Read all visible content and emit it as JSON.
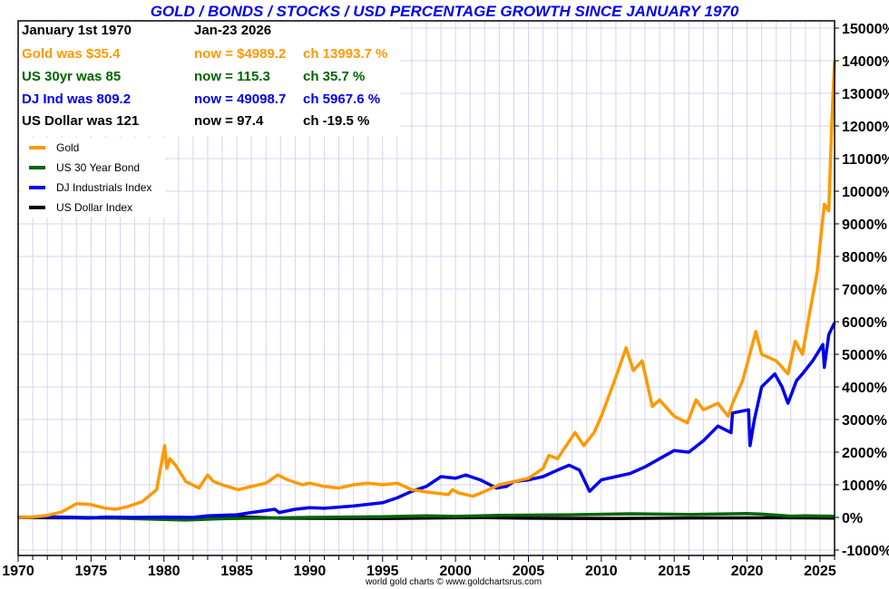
{
  "title": "GOLD / BONDS / STOCKS / USD PERCENTAGE GROWTH SINCE JANUARY 1970",
  "info": {
    "header": {
      "start": "January 1st 1970",
      "end": "Jan-23  2026"
    },
    "rows": [
      {
        "was": "Gold was $35.4",
        "now": "now = $4989.2",
        "ch": "ch 13993.7 %",
        "color": "#ff9900"
      },
      {
        "was": "US 30yr was 85",
        "now": "now = 115.3",
        "ch": "ch 35.7 %",
        "color": "#006600"
      },
      {
        "was": "DJ Ind was 809.2",
        "now": "now = 49098.7",
        "ch": "ch 5967.6 %",
        "color": "#0000ee"
      },
      {
        "was": "US Dollar was 121",
        "now": "now = 97.4",
        "ch": "ch -19.5 %",
        "color": "#000000"
      }
    ]
  },
  "footer": "world gold charts © www.goldchartsrus.com",
  "chart_data": {
    "type": "line",
    "title": "GOLD / BONDS / STOCKS / USD PERCENTAGE GROWTH SINCE JANUARY 1970",
    "xlabel": "",
    "ylabel": "",
    "xlim": [
      1970,
      2026
    ],
    "ylim": [
      -1000,
      15000
    ],
    "grid": true,
    "legend_position": "top-left",
    "x_ticks": [
      "1970",
      "1975",
      "1980",
      "1985",
      "1990",
      "1995",
      "2000",
      "2005",
      "2010",
      "2015",
      "2020",
      "2025"
    ],
    "y_ticks": [
      "15000%",
      "14000%",
      "13000%",
      "12000%",
      "11000%",
      "10000%",
      "9000%",
      "8000%",
      "7000%",
      "6000%",
      "5000%",
      "4000%",
      "3000%",
      "2000%",
      "1000%",
      "0%",
      "-1000%"
    ],
    "y_tick_values": [
      15000,
      14000,
      13000,
      12000,
      11000,
      10000,
      9000,
      8000,
      7000,
      6000,
      5000,
      4000,
      3000,
      2000,
      1000,
      0,
      -1000
    ],
    "x_tick_values": [
      1970,
      1975,
      1980,
      1985,
      1990,
      1995,
      2000,
      2005,
      2010,
      2015,
      2020,
      2025
    ],
    "series": [
      {
        "name": "US Dollar Index",
        "color": "#000000",
        "x": [
          1970,
          1972,
          1975,
          1980,
          1985,
          1988,
          1992,
          1995,
          2000,
          2002,
          2005,
          2008,
          2011,
          2015,
          2020,
          2022,
          2024,
          2026
        ],
        "y": [
          0,
          -10,
          -15,
          -20,
          20,
          -25,
          -30,
          -35,
          -10,
          -5,
          -25,
          -30,
          -35,
          -20,
          -15,
          -10,
          -15,
          -19.5
        ]
      },
      {
        "name": "US 30 Year Bond",
        "color": "#006600",
        "x": [
          1970,
          1973,
          1976,
          1980,
          1981.5,
          1984,
          1987,
          1990,
          1995,
          1998,
          2000,
          2003,
          2008,
          2012,
          2016,
          2020,
          2021,
          2023,
          2024,
          2026
        ],
        "y": [
          0,
          10,
          -10,
          -60,
          -80,
          -40,
          -20,
          0,
          20,
          50,
          30,
          60,
          80,
          110,
          90,
          120,
          100,
          40,
          50,
          35.7
        ]
      },
      {
        "name": "DJ Industrials Index",
        "color": "#0000ee",
        "x": [
          1970,
          1972,
          1974.8,
          1976,
          1978,
          1980,
          1982,
          1983,
          1985,
          1986,
          1987.6,
          1987.9,
          1989,
          1990,
          1991,
          1993,
          1995,
          1996,
          1997,
          1998,
          1999,
          2000,
          2000.7,
          2001.7,
          2002.8,
          2003.5,
          2004,
          2005,
          2006,
          2007,
          2007.8,
          2008.5,
          2009.2,
          2010,
          2011,
          2012,
          2013,
          2014,
          2015,
          2016,
          2017,
          2018,
          2018.9,
          2019,
          2020.1,
          2020.2,
          2020.5,
          2021,
          2021.9,
          2022.4,
          2022.8,
          2023.4,
          2023.8,
          2024.5,
          2025.2,
          2025.3,
          2025.6,
          2026
        ],
        "y": [
          0,
          20,
          -20,
          10,
          0,
          10,
          0,
          50,
          80,
          150,
          250,
          150,
          250,
          300,
          280,
          350,
          450,
          600,
          800,
          950,
          1250,
          1200,
          1300,
          1150,
          900,
          950,
          1100,
          1150,
          1250,
          1450,
          1600,
          1450,
          800,
          1150,
          1250,
          1350,
          1550,
          1800,
          2050,
          2000,
          2350,
          2800,
          2600,
          3200,
          3300,
          2200,
          3000,
          4000,
          4400,
          4000,
          3500,
          4200,
          4400,
          4800,
          5300,
          4600,
          5600,
          5970
        ]
      },
      {
        "name": "Gold",
        "color": "#ff9900",
        "x": [
          1970,
          1971,
          1972,
          1973,
          1974,
          1974.9,
          1976,
          1976.7,
          1977.5,
          1978.5,
          1979.5,
          1980.05,
          1980.2,
          1980.4,
          1980.8,
          1981.5,
          1982.4,
          1983.0,
          1983.4,
          1984,
          1985.1,
          1986,
          1987.0,
          1987.8,
          1988.5,
          1989.5,
          1990,
          1991,
          1992,
          1993,
          1994,
          1995,
          1996,
          1997,
          1998,
          1999.5,
          1999.8,
          2000.2,
          2001.2,
          2002,
          2003,
          2004,
          2005,
          2006,
          2006.4,
          2007,
          2008.2,
          2008.8,
          2009.5,
          2010,
          2011,
          2011.7,
          2012.2,
          2012.8,
          2013.5,
          2014,
          2015,
          2015.9,
          2016.5,
          2017,
          2018,
          2018.7,
          2019,
          2019.7,
          2020.6,
          2021,
          2022,
          2022.8,
          2023.3,
          2023.8,
          2024.3,
          2024.8,
          2025.3,
          2025.6,
          2025.8,
          2026
        ],
        "y": [
          0,
          10,
          60,
          170,
          420,
          400,
          280,
          250,
          330,
          480,
          850,
          2200,
          1500,
          1800,
          1600,
          1100,
          900,
          1300,
          1100,
          1000,
          850,
          950,
          1050,
          1300,
          1150,
          1000,
          1050,
          950,
          900,
          1000,
          1050,
          1000,
          1050,
          850,
          780,
          700,
          850,
          750,
          650,
          800,
          1000,
          1100,
          1200,
          1500,
          1900,
          1800,
          2600,
          2200,
          2600,
          3100,
          4300,
          5200,
          4500,
          4800,
          3400,
          3600,
          3100,
          2900,
          3600,
          3300,
          3500,
          3100,
          3500,
          4200,
          5700,
          5000,
          4800,
          4400,
          5400,
          5000,
          6300,
          7500,
          9600,
          9400,
          12000,
          14000
        ]
      }
    ],
    "legend": [
      "Gold",
      "US 30 Year Bond",
      "DJ Industrials Index",
      "US Dollar Index"
    ]
  }
}
